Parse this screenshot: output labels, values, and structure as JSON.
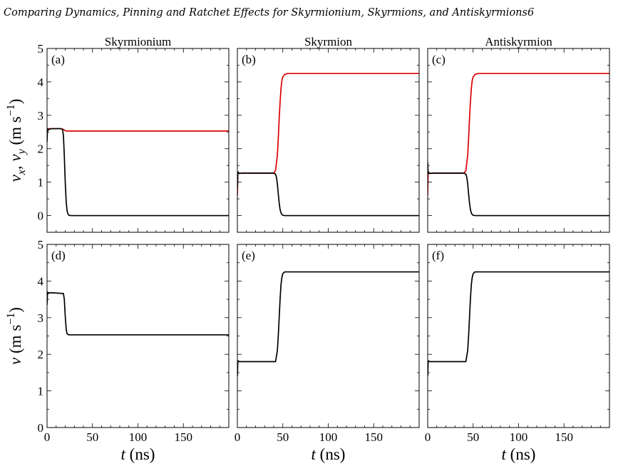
{
  "page_header": "Comparing Dynamics, Pinning and Ratchet Effects for Skyrmionium, Skyrmions, and Antiskyrmions",
  "page_number": "6",
  "colors": {
    "vx_series": "#000000",
    "vy_series": "#dd0000",
    "axes": "#000000"
  },
  "chart_data": [
    {
      "panel": "a",
      "panel_label": "(a)",
      "column_title": "Skyrmionium",
      "type": "line",
      "xlim": [
        0,
        200
      ],
      "ylim": [
        -0.5,
        5
      ],
      "xticks": [
        "0",
        "50",
        "100",
        "150"
      ],
      "yticks": [
        "0",
        "1",
        "2",
        "3",
        "4",
        "5"
      ],
      "ylabel": "v_x, v_y (m s^-1)",
      "series": [
        {
          "color": "#dd0000",
          "x": [
            0,
            0.5,
            1,
            2,
            5,
            15,
            18,
            20,
            22,
            200
          ],
          "y": [
            2.4,
            2.6,
            2.56,
            2.6,
            2.6,
            2.6,
            2.58,
            2.54,
            2.53,
            2.53
          ]
        },
        {
          "color": "#000000",
          "x": [
            0,
            0.5,
            1,
            2,
            5,
            15,
            17,
            18,
            19,
            20,
            21,
            22,
            23,
            24,
            26,
            200
          ],
          "y": [
            2.2,
            2.6,
            2.55,
            2.58,
            2.6,
            2.6,
            2.58,
            2.4,
            1.8,
            1.0,
            0.45,
            0.15,
            0.05,
            0.01,
            0,
            0
          ]
        }
      ]
    },
    {
      "panel": "b",
      "panel_label": "(b)",
      "column_title": "Skyrmion",
      "type": "line",
      "xlim": [
        0,
        200
      ],
      "ylim": [
        -0.5,
        5
      ],
      "xticks": [
        "0",
        "50",
        "100",
        "150"
      ],
      "yticks": [
        "0",
        "1",
        "2",
        "3",
        "4",
        "5"
      ],
      "series": [
        {
          "color": "#dd0000",
          "x": [
            0,
            0.5,
            1,
            2,
            5,
            40,
            42,
            44,
            45,
            46,
            47,
            48,
            49,
            50,
            52,
            55,
            200
          ],
          "y": [
            0.6,
            1.25,
            1.3,
            1.26,
            1.27,
            1.27,
            1.35,
            1.8,
            2.3,
            2.9,
            3.4,
            3.8,
            4.05,
            4.15,
            4.22,
            4.25,
            4.25
          ]
        },
        {
          "color": "#000000",
          "x": [
            0,
            0.5,
            1,
            2,
            5,
            40,
            42,
            43,
            44,
            45,
            46,
            47,
            48,
            49,
            50,
            52,
            200
          ],
          "y": [
            0.8,
            1.25,
            1.3,
            1.26,
            1.27,
            1.27,
            1.24,
            1.15,
            0.95,
            0.65,
            0.38,
            0.18,
            0.08,
            0.03,
            0.01,
            0,
            0
          ]
        }
      ]
    },
    {
      "panel": "c",
      "panel_label": "(c)",
      "column_title": "Antiskyrmion",
      "type": "line",
      "xlim": [
        0,
        200
      ],
      "ylim": [
        -0.5,
        5
      ],
      "xticks": [
        "0",
        "50",
        "100",
        "150"
      ],
      "yticks": [
        "0",
        "1",
        "2",
        "3",
        "4",
        "5"
      ],
      "series": [
        {
          "color": "#dd0000",
          "x": [
            0,
            0.5,
            1,
            2,
            5,
            40,
            42,
            44,
            45,
            46,
            47,
            48,
            49,
            50,
            52,
            55,
            200
          ],
          "y": [
            0.6,
            1.25,
            1.3,
            1.26,
            1.27,
            1.27,
            1.35,
            1.8,
            2.3,
            2.9,
            3.4,
            3.8,
            4.05,
            4.15,
            4.22,
            4.25,
            4.25
          ]
        },
        {
          "color": "#000000",
          "x": [
            0,
            0.5,
            1,
            2,
            5,
            40,
            42,
            43,
            44,
            45,
            46,
            47,
            48,
            49,
            50,
            52,
            200
          ],
          "y": [
            1.6,
            1.25,
            1.3,
            1.26,
            1.27,
            1.27,
            1.24,
            1.15,
            0.95,
            0.65,
            0.38,
            0.18,
            0.08,
            0.03,
            0.01,
            0,
            0
          ]
        }
      ]
    },
    {
      "panel": "d",
      "panel_label": "(d)",
      "type": "line",
      "xlim": [
        0,
        200
      ],
      "ylim": [
        0,
        5
      ],
      "xticks": [
        "0",
        "50",
        "100",
        "150"
      ],
      "yticks": [
        "0",
        "1",
        "2",
        "3",
        "4",
        "5"
      ],
      "xlabel": "t (ns)",
      "ylabel": "v (m s^-1)",
      "series": [
        {
          "color": "#000000",
          "x": [
            0,
            0.5,
            1,
            2,
            5,
            18,
            19,
            20,
            21,
            22,
            24,
            200
          ],
          "y": [
            3.35,
            3.7,
            3.65,
            3.68,
            3.68,
            3.66,
            3.5,
            3.05,
            2.7,
            2.56,
            2.53,
            2.53
          ]
        }
      ]
    },
    {
      "panel": "e",
      "panel_label": "(e)",
      "type": "line",
      "xlim": [
        0,
        200
      ],
      "ylim": [
        0,
        5
      ],
      "xticks": [
        "0",
        "50",
        "100",
        "150"
      ],
      "yticks": [
        "0",
        "1",
        "2",
        "3",
        "4",
        "5"
      ],
      "xlabel": "t (ns)",
      "series": [
        {
          "color": "#000000",
          "x": [
            0,
            0.5,
            1,
            2,
            5,
            42,
            44,
            45,
            46,
            47,
            48,
            49,
            50,
            52,
            200
          ],
          "y": [
            1.4,
            1.8,
            1.82,
            1.8,
            1.8,
            1.8,
            2.1,
            2.5,
            3.0,
            3.5,
            3.9,
            4.1,
            4.2,
            4.25,
            4.25
          ]
        }
      ]
    },
    {
      "panel": "f",
      "panel_label": "(f)",
      "type": "line",
      "xlim": [
        0,
        200
      ],
      "ylim": [
        0,
        5
      ],
      "xticks": [
        "0",
        "50",
        "100",
        "150"
      ],
      "yticks": [
        "0",
        "1",
        "2",
        "3",
        "4",
        "5"
      ],
      "xlabel": "t (ns)",
      "series": [
        {
          "color": "#000000",
          "x": [
            0,
            0.5,
            1,
            2,
            5,
            42,
            44,
            45,
            46,
            47,
            48,
            49,
            50,
            52,
            200
          ],
          "y": [
            1.4,
            1.8,
            1.82,
            1.8,
            1.8,
            1.8,
            2.1,
            2.5,
            3.0,
            3.5,
            3.9,
            4.1,
            4.2,
            4.25,
            4.25
          ]
        }
      ]
    }
  ]
}
